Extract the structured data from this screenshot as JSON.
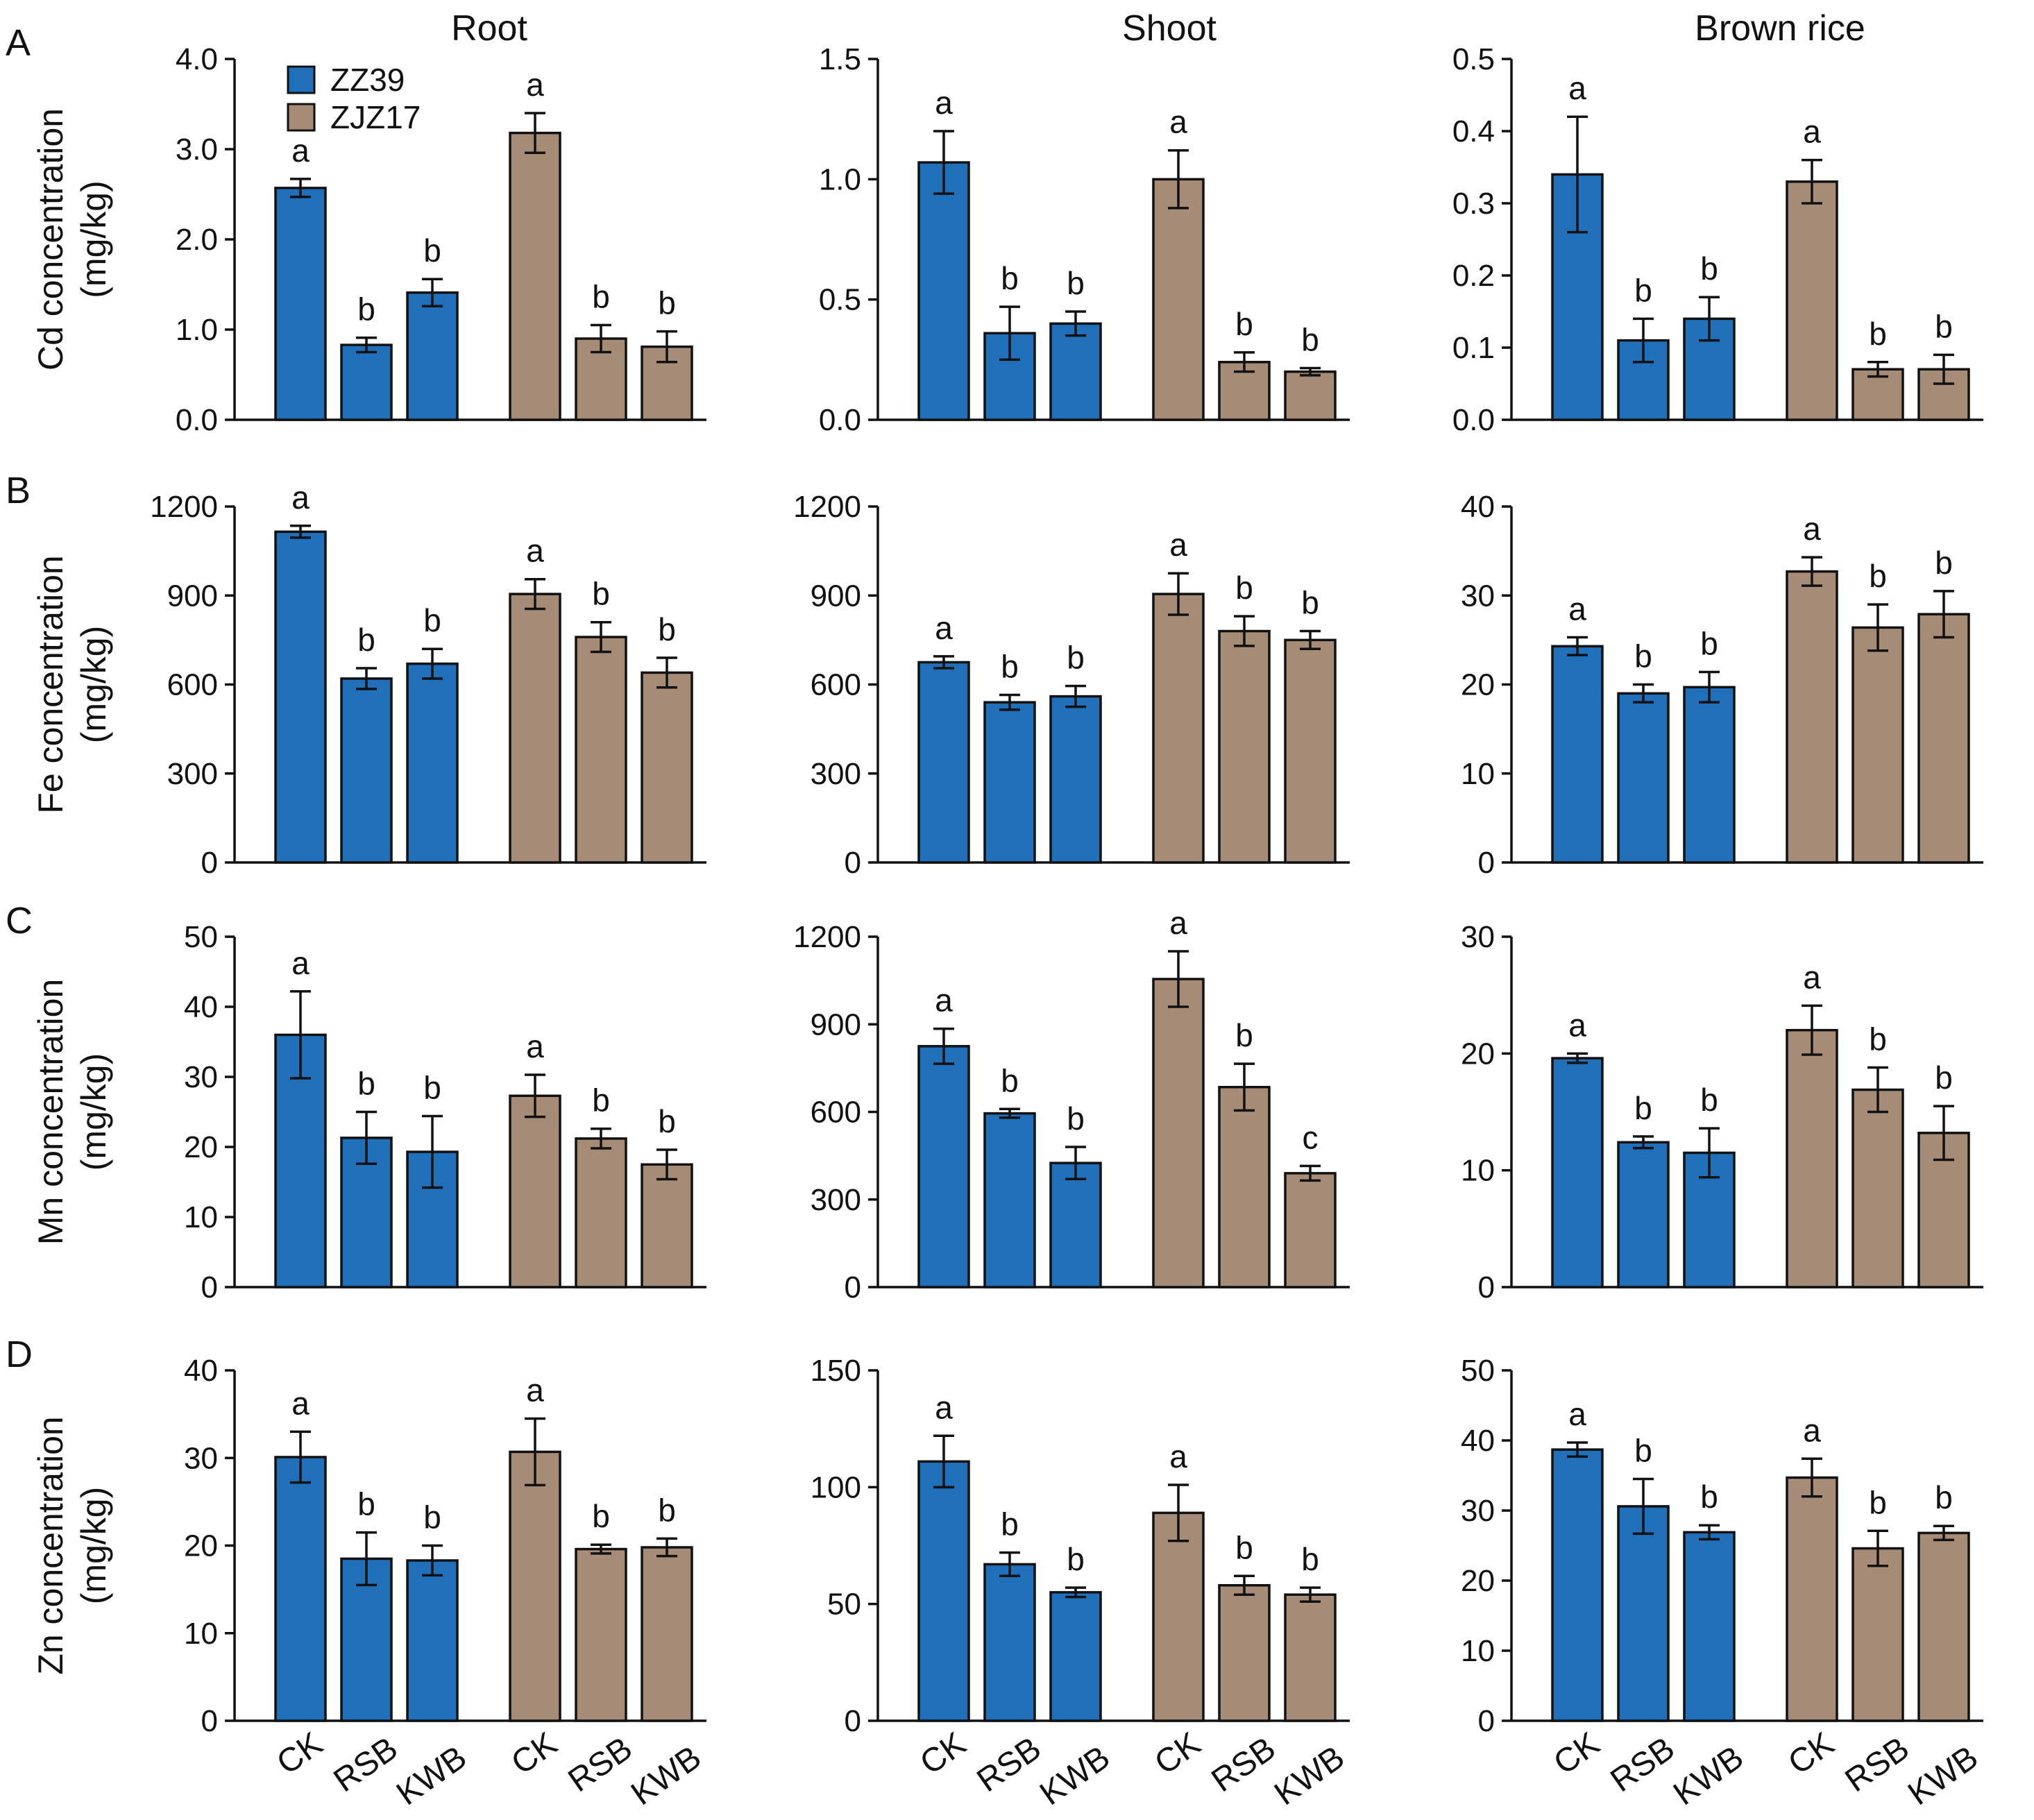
{
  "column_titles": [
    "Root",
    "Shoot",
    "Brown rice"
  ],
  "row_letters": [
    "A",
    "B",
    "C",
    "D"
  ],
  "row_ylabels": [
    [
      "Cd concentration",
      "(mg/kg)"
    ],
    [
      "Fe concentration",
      "(mg/kg)"
    ],
    [
      "Mn concentration",
      "(mg/kg)"
    ],
    [
      "Zn concentration",
      "(mg/kg)"
    ]
  ],
  "legend": [
    {
      "name": "ZZ39",
      "color": "#1f6fba"
    },
    {
      "name": "ZJZ17",
      "color": "#a68b76"
    }
  ],
  "categories": [
    "CK",
    "RSB",
    "KWB"
  ],
  "colors": {
    "ZZ39": "#1f6fba",
    "ZJZ17": "#a68b76"
  },
  "chart_data": [
    {
      "type": "bar",
      "row": "A",
      "column": "Root",
      "ylim": [
        0,
        4.0
      ],
      "ticks": [
        "0.0",
        "1.0",
        "2.0",
        "3.0",
        "4.0"
      ],
      "series": [
        {
          "name": "ZZ39",
          "values": [
            2.57,
            0.83,
            1.41
          ],
          "errors": [
            0.1,
            0.08,
            0.15
          ],
          "letters": [
            "a",
            "b",
            "b"
          ]
        },
        {
          "name": "ZJZ17",
          "values": [
            3.18,
            0.9,
            0.81
          ],
          "errors": [
            0.22,
            0.15,
            0.17
          ],
          "letters": [
            "a",
            "b",
            "b"
          ]
        }
      ]
    },
    {
      "type": "bar",
      "row": "A",
      "column": "Shoot",
      "ylim": [
        0,
        1.5
      ],
      "ticks": [
        "0.0",
        "0.5",
        "1.0",
        "1.5"
      ],
      "series": [
        {
          "name": "ZZ39",
          "values": [
            1.07,
            0.36,
            0.4
          ],
          "errors": [
            0.13,
            0.11,
            0.05
          ],
          "letters": [
            "a",
            "b",
            "b"
          ]
        },
        {
          "name": "ZJZ17",
          "values": [
            1.0,
            0.24,
            0.2
          ],
          "errors": [
            0.12,
            0.04,
            0.015
          ],
          "letters": [
            "a",
            "b",
            "b"
          ]
        }
      ]
    },
    {
      "type": "bar",
      "row": "A",
      "column": "Brown rice",
      "ylim": [
        0,
        0.5
      ],
      "ticks": [
        "0.0",
        "0.1",
        "0.2",
        "0.3",
        "0.4",
        "0.5"
      ],
      "series": [
        {
          "name": "ZZ39",
          "values": [
            0.34,
            0.11,
            0.14
          ],
          "errors": [
            0.08,
            0.03,
            0.03
          ],
          "letters": [
            "a",
            "b",
            "b"
          ]
        },
        {
          "name": "ZJZ17",
          "values": [
            0.33,
            0.07,
            0.07
          ],
          "errors": [
            0.03,
            0.01,
            0.02
          ],
          "letters": [
            "a",
            "b",
            "b"
          ]
        }
      ]
    },
    {
      "type": "bar",
      "row": "B",
      "column": "Root",
      "ylim": [
        0,
        1200
      ],
      "ticks": [
        "0",
        "300",
        "600",
        "900",
        "1200"
      ],
      "series": [
        {
          "name": "ZZ39",
          "values": [
            1115,
            620,
            670
          ],
          "errors": [
            20,
            35,
            50
          ],
          "letters": [
            "a",
            "b",
            "b"
          ]
        },
        {
          "name": "ZJZ17",
          "values": [
            905,
            760,
            640
          ],
          "errors": [
            50,
            50,
            50
          ],
          "letters": [
            "a",
            "b",
            "b"
          ]
        }
      ]
    },
    {
      "type": "bar",
      "row": "B",
      "column": "Shoot",
      "ylim": [
        0,
        1200
      ],
      "ticks": [
        "0",
        "300",
        "600",
        "900",
        "1200"
      ],
      "series": [
        {
          "name": "ZZ39",
          "values": [
            675,
            540,
            560
          ],
          "errors": [
            20,
            25,
            35
          ],
          "letters": [
            "a",
            "b",
            "b"
          ]
        },
        {
          "name": "ZJZ17",
          "values": [
            905,
            780,
            750
          ],
          "errors": [
            70,
            50,
            30
          ],
          "letters": [
            "a",
            "b",
            "b"
          ]
        }
      ]
    },
    {
      "type": "bar",
      "row": "B",
      "column": "Brown rice",
      "ylim": [
        0,
        40
      ],
      "ticks": [
        "0",
        "10",
        "20",
        "30",
        "40"
      ],
      "series": [
        {
          "name": "ZZ39",
          "values": [
            24.3,
            19.0,
            19.7
          ],
          "errors": [
            1.0,
            1.0,
            1.7
          ],
          "letters": [
            "a",
            "b",
            "b"
          ]
        },
        {
          "name": "ZJZ17",
          "values": [
            32.7,
            26.4,
            27.9
          ],
          "errors": [
            1.6,
            2.6,
            2.6
          ],
          "letters": [
            "a",
            "b",
            "b"
          ]
        }
      ]
    },
    {
      "type": "bar",
      "row": "C",
      "column": "Root",
      "ylim": [
        0,
        50
      ],
      "ticks": [
        "0",
        "10",
        "20",
        "30",
        "40",
        "50"
      ],
      "series": [
        {
          "name": "ZZ39",
          "values": [
            36,
            21.3,
            19.3
          ],
          "errors": [
            6.2,
            3.7,
            5.1
          ],
          "letters": [
            "a",
            "b",
            "b"
          ]
        },
        {
          "name": "ZJZ17",
          "values": [
            27.3,
            21.2,
            17.5
          ],
          "errors": [
            3.0,
            1.4,
            2.1
          ],
          "letters": [
            "a",
            "b",
            "b"
          ]
        }
      ]
    },
    {
      "type": "bar",
      "row": "C",
      "column": "Shoot",
      "ylim": [
        0,
        1200
      ],
      "ticks": [
        "0",
        "300",
        "600",
        "900",
        "1200"
      ],
      "series": [
        {
          "name": "ZZ39",
          "values": [
            825,
            595,
            425
          ],
          "errors": [
            60,
            15,
            55
          ],
          "letters": [
            "a",
            "b",
            "b"
          ]
        },
        {
          "name": "ZJZ17",
          "values": [
            1055,
            685,
            390
          ],
          "errors": [
            95,
            80,
            25
          ],
          "letters": [
            "a",
            "b",
            "c"
          ]
        }
      ]
    },
    {
      "type": "bar",
      "row": "C",
      "column": "Brown rice",
      "ylim": [
        0,
        30
      ],
      "ticks": [
        "0",
        "10",
        "20",
        "30"
      ],
      "series": [
        {
          "name": "ZZ39",
          "values": [
            19.6,
            12.4,
            11.5
          ],
          "errors": [
            0.4,
            0.5,
            2.1
          ],
          "letters": [
            "a",
            "b",
            "b"
          ]
        },
        {
          "name": "ZJZ17",
          "values": [
            22.0,
            16.9,
            13.2
          ],
          "errors": [
            2.1,
            1.9,
            2.3
          ],
          "letters": [
            "a",
            "b",
            "b"
          ]
        }
      ]
    },
    {
      "type": "bar",
      "row": "D",
      "column": "Root",
      "ylim": [
        0,
        40
      ],
      "ticks": [
        "0",
        "10",
        "20",
        "30",
        "40"
      ],
      "series": [
        {
          "name": "ZZ39",
          "values": [
            30.1,
            18.5,
            18.3
          ],
          "errors": [
            2.9,
            3.0,
            1.7
          ],
          "letters": [
            "a",
            "b",
            "b"
          ]
        },
        {
          "name": "ZJZ17",
          "values": [
            30.7,
            19.6,
            19.8
          ],
          "errors": [
            3.8,
            0.5,
            1.0
          ],
          "letters": [
            "a",
            "b",
            "b"
          ]
        }
      ]
    },
    {
      "type": "bar",
      "row": "D",
      "column": "Shoot",
      "ylim": [
        0,
        150
      ],
      "ticks": [
        "0",
        "50",
        "100",
        "150"
      ],
      "series": [
        {
          "name": "ZZ39",
          "values": [
            111,
            67,
            55
          ],
          "errors": [
            11,
            5,
            2
          ],
          "letters": [
            "a",
            "b",
            "b"
          ]
        },
        {
          "name": "ZJZ17",
          "values": [
            89,
            58,
            54
          ],
          "errors": [
            12,
            4,
            3
          ],
          "letters": [
            "a",
            "b",
            "b"
          ]
        }
      ]
    },
    {
      "type": "bar",
      "row": "D",
      "column": "Brown rice",
      "ylim": [
        0,
        50
      ],
      "ticks": [
        "0",
        "10",
        "20",
        "30",
        "40",
        "50"
      ],
      "series": [
        {
          "name": "ZZ39",
          "values": [
            38.7,
            30.6,
            26.9
          ],
          "errors": [
            1.0,
            3.9,
            1.0
          ],
          "letters": [
            "a",
            "b",
            "b"
          ]
        },
        {
          "name": "ZJZ17",
          "values": [
            34.7,
            24.6,
            26.8
          ],
          "errors": [
            2.7,
            2.5,
            1.0
          ],
          "letters": [
            "a",
            "b",
            "b"
          ]
        }
      ]
    }
  ]
}
